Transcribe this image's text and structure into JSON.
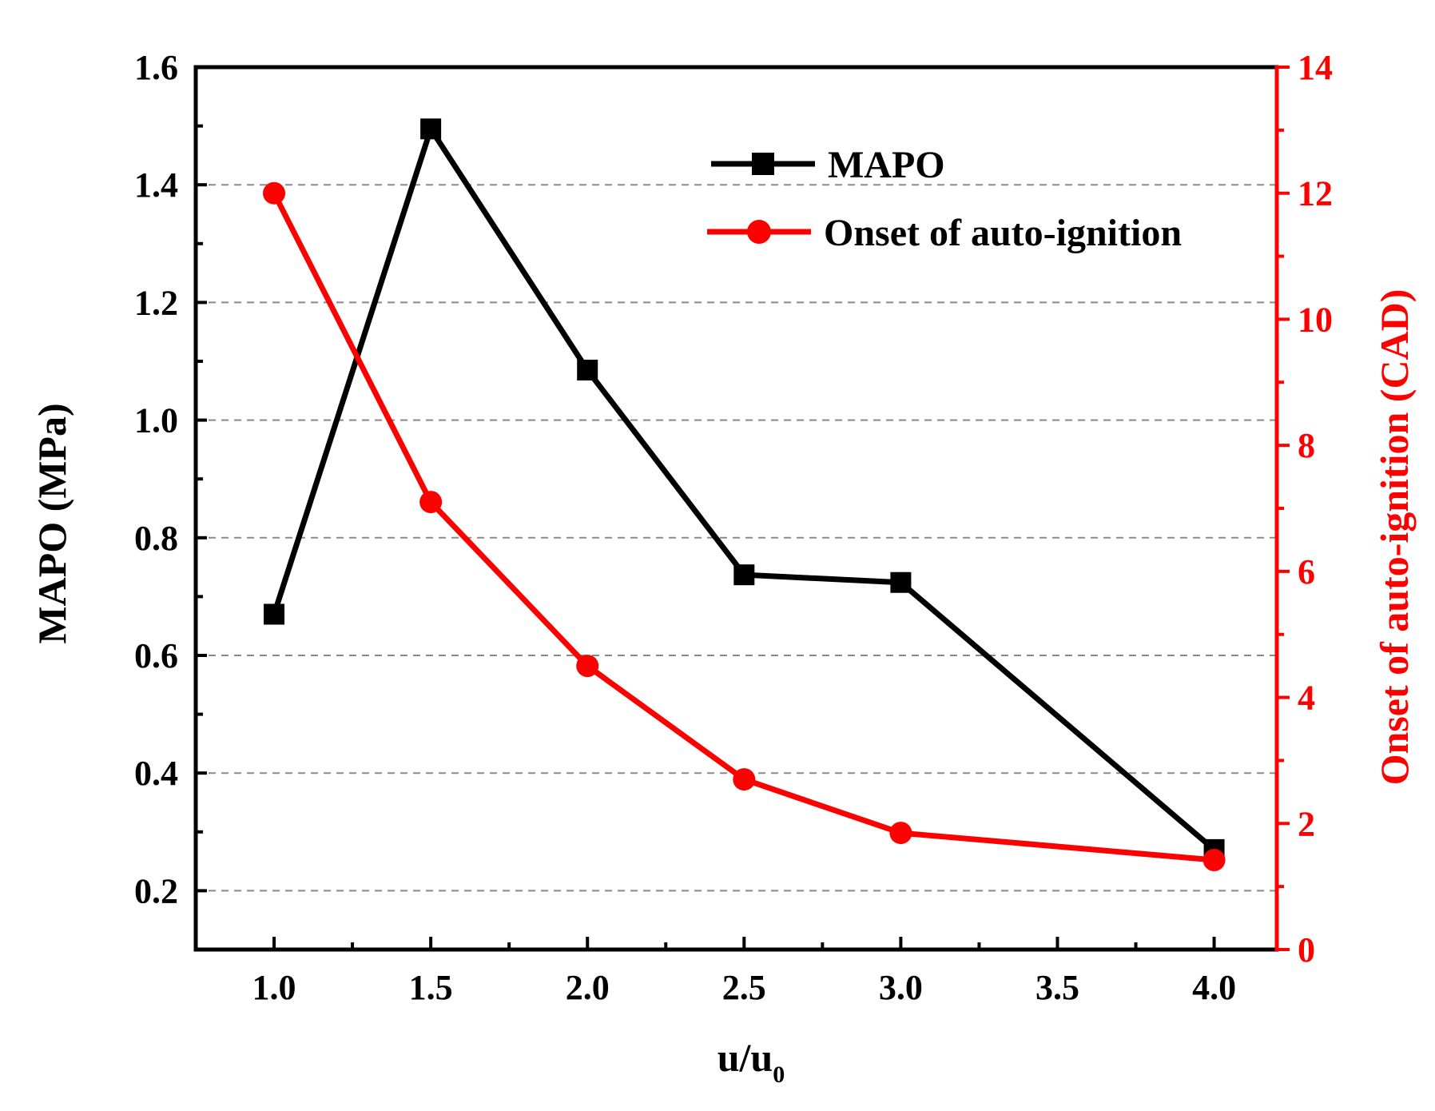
{
  "chart_data": {
    "type": "line",
    "x": [
      1.0,
      1.5,
      2.0,
      2.5,
      3.0,
      4.0
    ],
    "xlim": [
      0.75,
      4.2
    ],
    "x_ticks": [
      1.0,
      1.5,
      2.0,
      2.5,
      3.0,
      3.5,
      4.0
    ],
    "x_tick_labels": [
      "1.0",
      "1.5",
      "2.0",
      "2.5",
      "3.0",
      "3.5",
      "4.0"
    ],
    "xlabel": "u/u",
    "xlabel_subscript": "0",
    "ylim_left": [
      0.1,
      1.6
    ],
    "y_ticks_left": [
      0.2,
      0.4,
      0.6,
      0.8,
      1.0,
      1.2,
      1.4,
      1.6
    ],
    "y_tick_labels_left": [
      "0.2",
      "0.4",
      "0.6",
      "0.8",
      "1.0",
      "1.2",
      "1.4",
      "1.6"
    ],
    "ylabel_left": "MAPO (MPa)",
    "ylim_right": [
      0,
      14
    ],
    "y_ticks_right": [
      0,
      2,
      4,
      6,
      8,
      10,
      12,
      14
    ],
    "y_tick_labels_right": [
      "0",
      "2",
      "4",
      "6",
      "8",
      "10",
      "12",
      "14"
    ],
    "ylabel_right": "Onset of auto-ignition (CAD)",
    "grid": "horizontal dashed",
    "legend_position": "top-right",
    "series": [
      {
        "name": "MAPO",
        "axis": "left",
        "marker": "square",
        "color": "#000000",
        "values": [
          0.67,
          1.495,
          1.085,
          0.737,
          0.724,
          0.27
        ]
      },
      {
        "name": "Onset of auto-ignition",
        "axis": "right",
        "marker": "circle",
        "color": "#ff0000",
        "values": [
          12.0,
          7.1,
          4.5,
          2.7,
          1.85,
          1.42
        ]
      }
    ]
  }
}
